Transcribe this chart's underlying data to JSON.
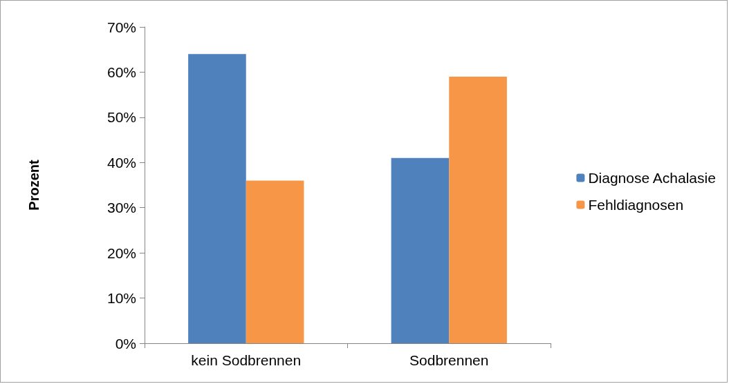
{
  "chart_data": {
    "type": "bar",
    "ylabel": "Prozent",
    "categories": [
      "kein Sodbrennen",
      "Sodbrennen"
    ],
    "series": [
      {
        "name": "Diagnose Achalasie",
        "color": "#4f81bd",
        "values": [
          64,
          41
        ]
      },
      {
        "name": "Fehldiagnosen",
        "color": "#f79646",
        "values": [
          36,
          59
        ]
      }
    ],
    "ylim": [
      0,
      70
    ],
    "yticks": [
      {
        "value": 0,
        "label": "0%"
      },
      {
        "value": 10,
        "label": "10%"
      },
      {
        "value": 20,
        "label": "20%"
      },
      {
        "value": 30,
        "label": "30%"
      },
      {
        "value": 40,
        "label": "40%"
      },
      {
        "value": 50,
        "label": "50%"
      },
      {
        "value": 60,
        "label": "60%"
      },
      {
        "value": 70,
        "label": "70%"
      }
    ],
    "grid": false,
    "legend": "right"
  }
}
